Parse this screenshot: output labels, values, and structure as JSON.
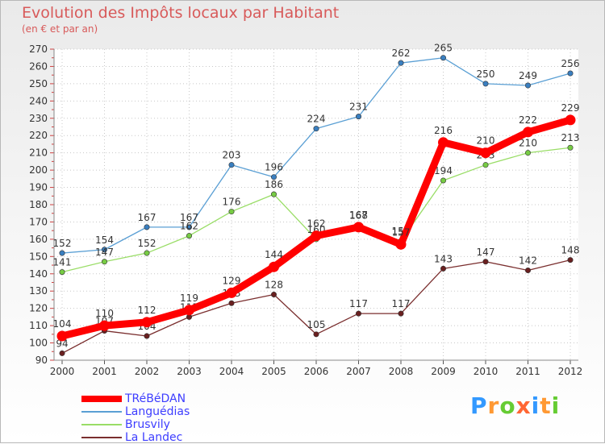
{
  "title": "Evolution des Impôts locaux par Habitant",
  "subtitle": "(en € et par an)",
  "logo": {
    "text": "Proxiti",
    "letters": [
      "P",
      "r",
      "o",
      "x",
      "i",
      "t",
      "i"
    ],
    "colors": [
      "#3399ff",
      "#ff9933",
      "#66cc33",
      "#ff6633",
      "#3399ff",
      "#ff9933",
      "#66cc33"
    ]
  },
  "chart_data": {
    "type": "line",
    "title": "Evolution des Impôts locaux par Habitant",
    "subtitle": "(en € et par an)",
    "xlabel": "",
    "ylabel": "",
    "ylim": [
      90,
      270
    ],
    "ytick_step": 10,
    "grid": true,
    "legend_position": "bottom-left",
    "x": [
      "2000",
      "2001",
      "2002",
      "2003",
      "2004",
      "2005",
      "2006",
      "2007",
      "2008",
      "2009",
      "2010",
      "2011",
      "2012"
    ],
    "series": [
      {
        "name": "Languédias",
        "color": "#5a9fd4",
        "marker": "#3a7fc0",
        "emphasis": false,
        "values": [
          152,
          154,
          167,
          167,
          203,
          196,
          224,
          231,
          262,
          265,
          250,
          249,
          256
        ],
        "labels": [
          "152",
          "154",
          "167",
          "167",
          "203",
          "196",
          "224",
          "231",
          "262",
          "265",
          "250",
          "249",
          "256"
        ]
      },
      {
        "name": "Brusvily",
        "color": "#99dd66",
        "marker": "#77cc44",
        "emphasis": false,
        "values": [
          141,
          147,
          152,
          162,
          176,
          186,
          160,
          168,
          159,
          194,
          203,
          210,
          213
        ],
        "labels": [
          "141",
          "147",
          "152",
          "162",
          "176",
          "186",
          "160",
          "168",
          "159",
          "194",
          "203",
          "210",
          "213"
        ]
      },
      {
        "name": "La Landec",
        "color": "#7a2e2e",
        "marker": "#6a2020",
        "emphasis": false,
        "values": [
          94,
          107,
          104,
          115,
          123,
          128,
          105,
          117,
          117,
          143,
          147,
          142,
          148
        ],
        "labels": [
          "94",
          "107",
          "104",
          "115",
          "123",
          "128",
          "105",
          "117",
          "117",
          "143",
          "147",
          "142",
          "148"
        ]
      },
      {
        "name": "TRéBéDAN",
        "color": "#ff0000",
        "marker": "#ff0000",
        "emphasis": true,
        "values": [
          104,
          110,
          112,
          119,
          129,
          144,
          162,
          167,
          157,
          216,
          210,
          222,
          229
        ],
        "labels": [
          "104",
          "110",
          "112",
          "119",
          "129",
          "144",
          "162",
          "167",
          "157",
          "216",
          "210",
          "222",
          "229"
        ]
      }
    ],
    "legend_order": [
      "TRéBéDAN",
      "Languédias",
      "Brusvily",
      "La Landec"
    ]
  }
}
